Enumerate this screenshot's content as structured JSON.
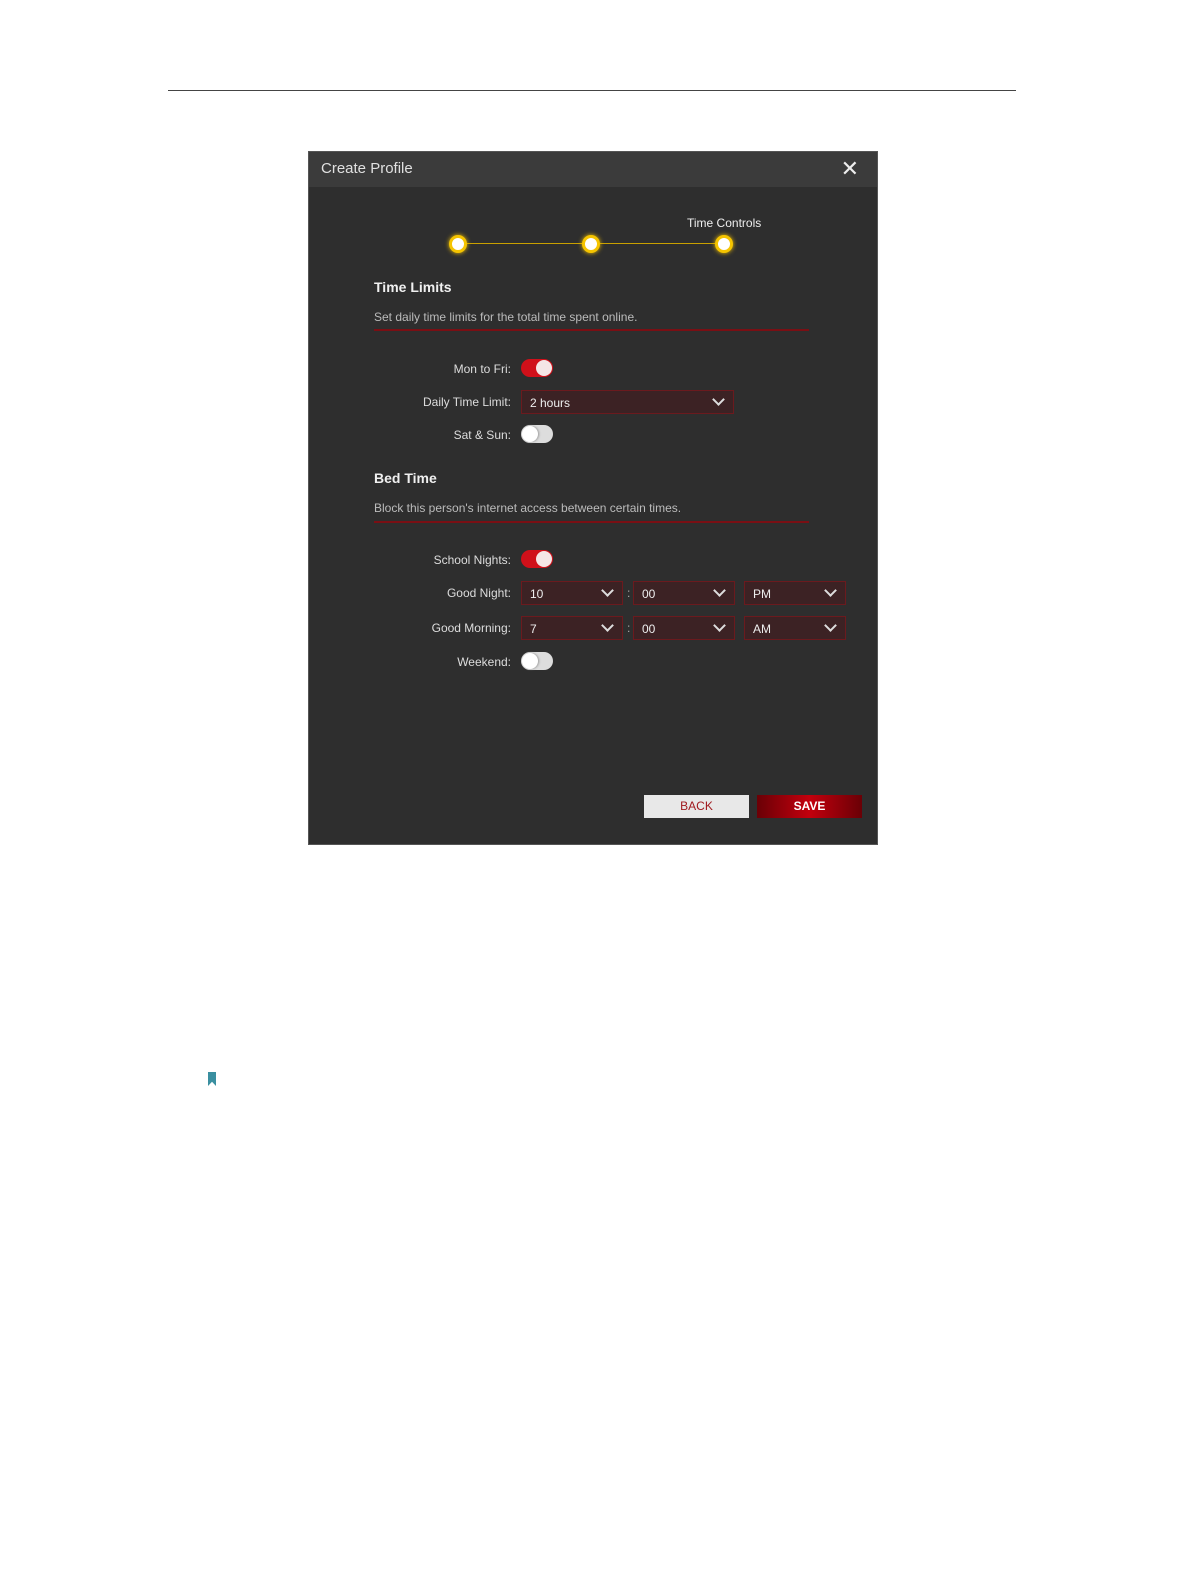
{
  "dialog": {
    "title": "Create Profile",
    "close_icon": "close-icon"
  },
  "stepper": {
    "current_label": "Time Controls",
    "steps_completed": 3,
    "accent": "#f5c400"
  },
  "time_limits": {
    "heading": "Time Limits",
    "description": "Set daily time limits for the total time spent online.",
    "mon_fri_label": "Mon to Fri:",
    "mon_fri_on": true,
    "daily_limit_label": "Daily Time Limit:",
    "daily_limit_value": "2 hours",
    "sat_sun_label": "Sat & Sun:",
    "sat_sun_on": false
  },
  "bed_time": {
    "heading": "Bed Time",
    "description": "Block this person's internet access between certain times.",
    "school_nights_label": "School Nights:",
    "school_nights_on": true,
    "good_night_label": "Good Night:",
    "good_night": {
      "hour": "10",
      "minute": "00",
      "ampm": "PM"
    },
    "good_morning_label": "Good Morning:",
    "good_morning": {
      "hour": "7",
      "minute": "00",
      "ampm": "AM"
    },
    "colon": ":",
    "weekend_label": "Weekend:",
    "weekend_on": false
  },
  "buttons": {
    "back": "BACK",
    "save": "SAVE"
  },
  "colors": {
    "accent_red": "#d0101a",
    "dialog_bg": "#2e2e2e"
  }
}
